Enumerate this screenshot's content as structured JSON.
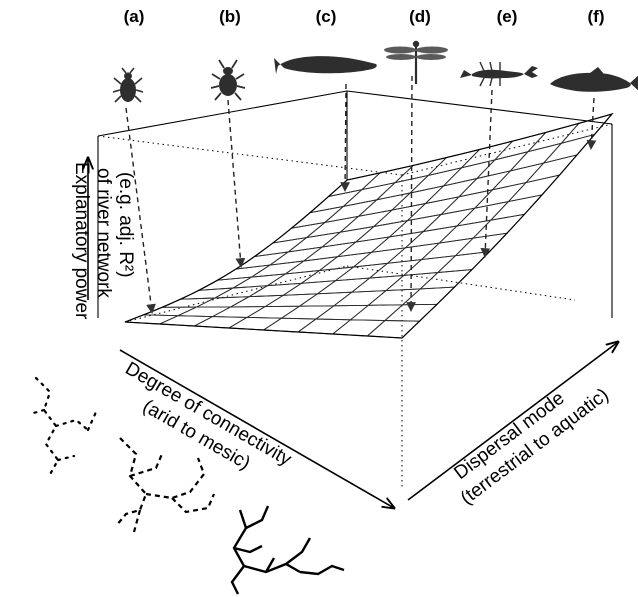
{
  "panels": [
    {
      "letter": "(a)",
      "organism": "beetle-larva"
    },
    {
      "letter": "(b)",
      "organism": "beetle"
    },
    {
      "letter": "(c)",
      "organism": "fish"
    },
    {
      "letter": "(d)",
      "organism": "dragonfly"
    },
    {
      "letter": "(e)",
      "organism": "crayfish"
    },
    {
      "letter": "(f)",
      "organism": "trout"
    }
  ],
  "axes": {
    "z_label_lines": [
      "Explanatory power",
      "of river network",
      "(e.g. adj. R²)"
    ],
    "x_label_lines": [
      "Degree of connectivity",
      "(arid to mesic)"
    ],
    "y_label_lines": [
      "Dispersal mode",
      "(terrestrial to aquatic)"
    ]
  },
  "surface": {
    "rows": 8,
    "cols": 12,
    "colors": {
      "low": "#fdf0b8",
      "mid": "#f3955e",
      "high": "#c4183f"
    }
  },
  "network_styles": [
    "dotted",
    "dashed",
    "solid"
  ]
}
